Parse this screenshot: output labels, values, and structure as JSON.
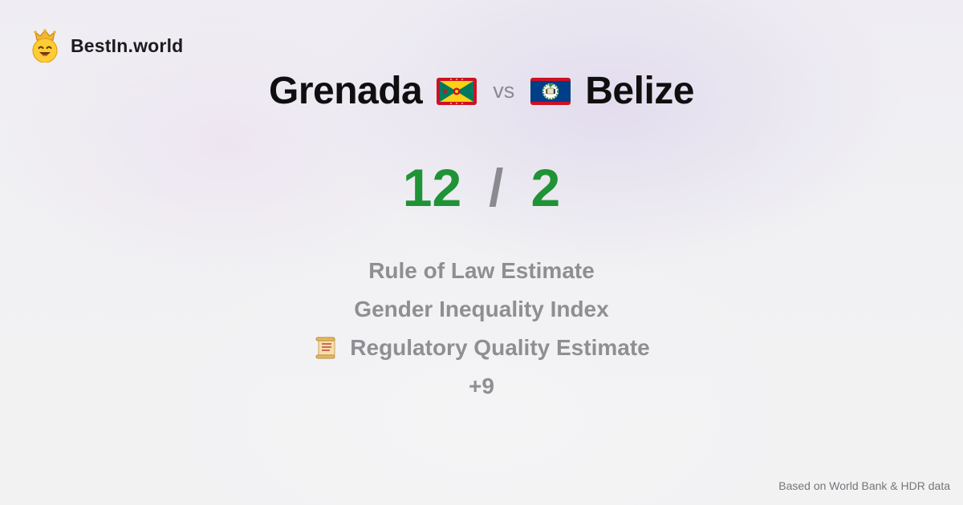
{
  "brand": {
    "name": "BestIn.world",
    "icon": "crowned-smiley-icon"
  },
  "comparison": {
    "left_country": "Grenada",
    "left_flag_icon": "grenada-flag-icon",
    "vs_label": "vs",
    "right_country": "Belize",
    "right_flag_icon": "belize-flag-icon"
  },
  "score": {
    "left": "12",
    "separator": "/",
    "right": "2",
    "color": "#1f9336"
  },
  "metrics": [
    {
      "label": "Rule of Law Estimate"
    },
    {
      "label": "Gender Inequality Index"
    },
    {
      "label": "Regulatory Quality Estimate",
      "icon": "scroll-icon"
    },
    {
      "label": "+9"
    }
  ],
  "footer": {
    "source_note": "Based on World Bank & HDR data"
  }
}
